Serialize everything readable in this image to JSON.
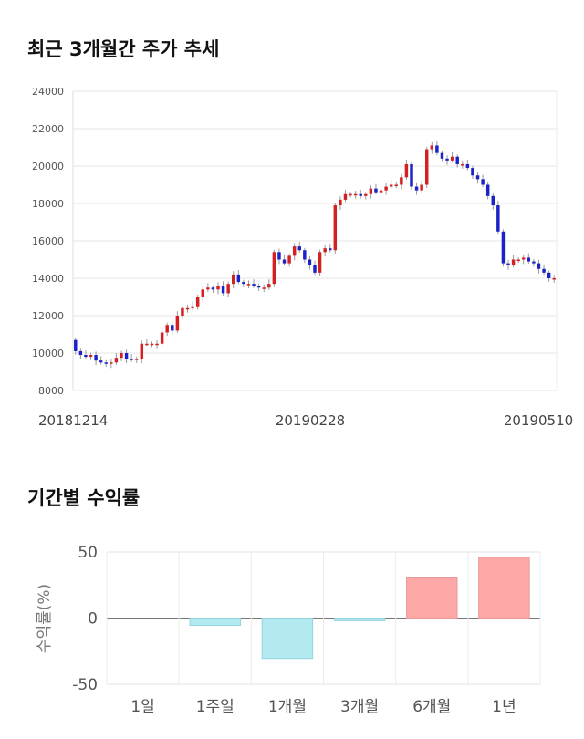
{
  "titles": {
    "price_trend": "최근 3개월간 주가 추세",
    "returns": "기간별 수익률"
  },
  "colors": {
    "up": "#d42020",
    "down": "#1a22c8",
    "return_positive": "#ffa8a8",
    "return_negative": "#b3eaf2"
  },
  "chart_data": [
    {
      "type": "candlestick",
      "title": "",
      "ylim": [
        8000,
        24000
      ],
      "y_ticks": [
        8000,
        10000,
        12000,
        14000,
        16000,
        18000,
        20000,
        22000,
        24000
      ],
      "x_labels": [
        "20181214",
        "20190228",
        "20190510"
      ],
      "grid": true,
      "closes": [
        10100,
        9900,
        9800,
        9900,
        9600,
        9500,
        9450,
        9500,
        9750,
        10000,
        9700,
        9650,
        9700,
        10500,
        10500,
        10500,
        10500,
        11100,
        11500,
        11200,
        12000,
        12400,
        12400,
        12500,
        13000,
        13400,
        13500,
        13400,
        13600,
        13200,
        13700,
        14200,
        13800,
        13700,
        13700,
        13600,
        13500,
        13500,
        13700,
        15400,
        15000,
        14800,
        15200,
        15700,
        15500,
        15000,
        14700,
        14300,
        15400,
        15600,
        15500,
        17900,
        18200,
        18500,
        18500,
        18500,
        18400,
        18500,
        18800,
        18600,
        18700,
        18900,
        19000,
        19000,
        19400,
        20100,
        18900,
        18700,
        19000,
        20900,
        21100,
        20700,
        20400,
        20300,
        20500,
        20100,
        20100,
        19900,
        19500,
        19300,
        19000,
        18400,
        17900,
        16500,
        14800,
        14700,
        15000,
        15000,
        15100,
        14900,
        14800,
        14500,
        14300,
        14000,
        14000
      ]
    },
    {
      "type": "bar",
      "title": "",
      "categories": [
        "1일",
        "1주일",
        "1개월",
        "3개월",
        "6개월",
        "1년"
      ],
      "values": [
        0,
        -5.5,
        -30.5,
        -2,
        31,
        46
      ],
      "ylabel": "수익률(%)",
      "ylim": [
        -50,
        50
      ],
      "y_ticks": [
        50,
        0,
        -50
      ]
    }
  ]
}
